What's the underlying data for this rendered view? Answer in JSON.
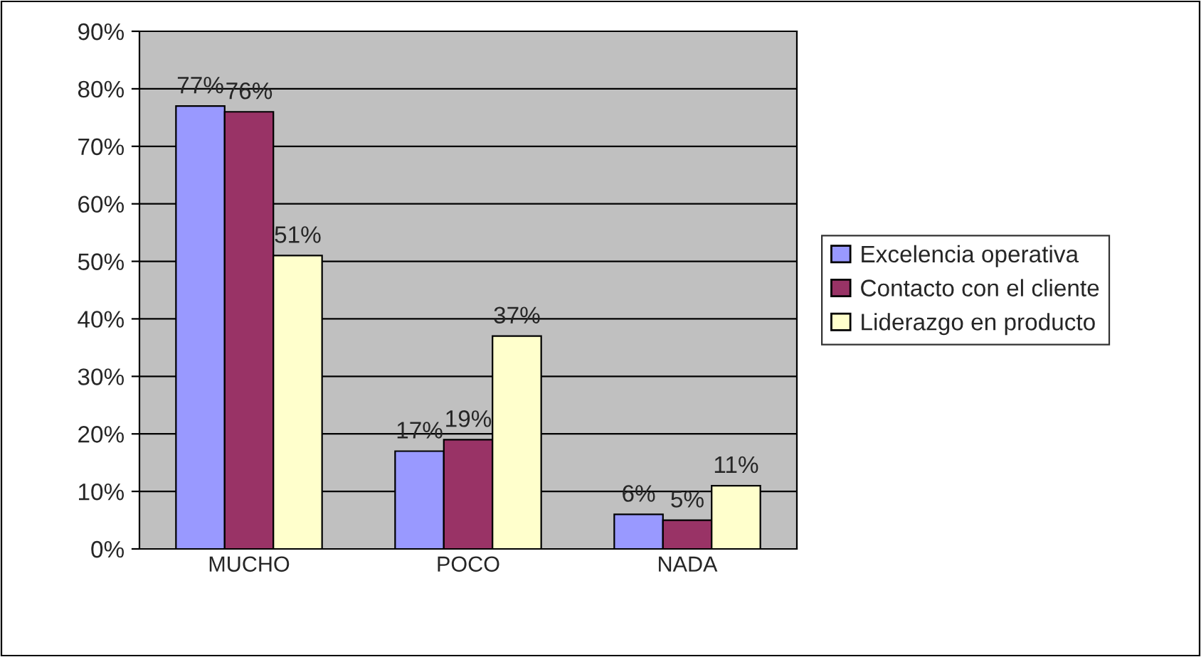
{
  "chart_data": {
    "type": "bar",
    "categories": [
      "MUCHO",
      "POCO",
      "NADA"
    ],
    "series": [
      {
        "name": "Excelencia operativa",
        "color": "#9999ff",
        "values": [
          77,
          17,
          6
        ],
        "value_labels": [
          "77%",
          "17%",
          "6%"
        ]
      },
      {
        "name": "Contacto con el cliente",
        "color": "#993366",
        "values": [
          76,
          19,
          5
        ],
        "value_labels": [
          "76%",
          "19%",
          "5%"
        ]
      },
      {
        "name": "Liderazgo en producto",
        "color": "#ffffcc",
        "values": [
          51,
          37,
          11
        ],
        "value_labels": [
          "51%",
          "37%",
          "11%"
        ]
      }
    ],
    "ylim": [
      0,
      90
    ],
    "yticks": [
      {
        "value": 0,
        "label": "0%"
      },
      {
        "value": 10,
        "label": "10%"
      },
      {
        "value": 20,
        "label": "20%"
      },
      {
        "value": 30,
        "label": "30%"
      },
      {
        "value": 40,
        "label": "40%"
      },
      {
        "value": 50,
        "label": "50%"
      },
      {
        "value": 60,
        "label": "60%"
      },
      {
        "value": 70,
        "label": "70%"
      },
      {
        "value": 80,
        "label": "80%"
      },
      {
        "value": 90,
        "label": "90%"
      }
    ],
    "grid": "y",
    "legend": "right"
  }
}
